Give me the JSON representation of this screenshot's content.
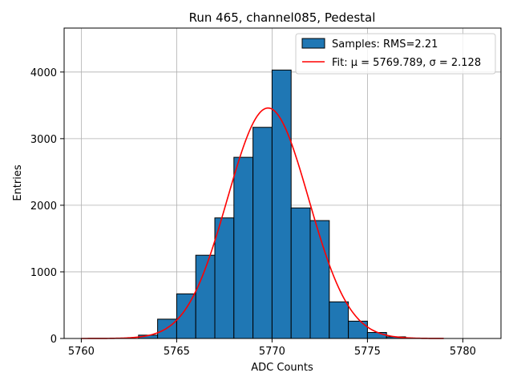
{
  "chart_data": {
    "type": "bar",
    "title": "Run 465, channel085, Pedestal",
    "xlabel": "ADC Counts",
    "ylabel": "Entries",
    "xlim": [
      5759.1,
      5782.0
    ],
    "ylim": [
      0,
      4660
    ],
    "xticks": [
      5760,
      5765,
      5770,
      5775,
      5780
    ],
    "yticks": [
      0,
      1000,
      2000,
      3000,
      4000
    ],
    "grid": true,
    "legend_position": "top-right",
    "bin_width": 1,
    "bins": [
      {
        "left": 5763,
        "count": 50
      },
      {
        "left": 5764,
        "count": 290
      },
      {
        "left": 5765,
        "count": 670
      },
      {
        "left": 5766,
        "count": 1250
      },
      {
        "left": 5767,
        "count": 1810
      },
      {
        "left": 5768,
        "count": 2720
      },
      {
        "left": 5769,
        "count": 3170
      },
      {
        "left": 5770,
        "count": 4030
      },
      {
        "left": 5771,
        "count": 1960
      },
      {
        "left": 5772,
        "count": 1770
      },
      {
        "left": 5773,
        "count": 550
      },
      {
        "left": 5774,
        "count": 260
      },
      {
        "left": 5775,
        "count": 90
      },
      {
        "left": 5776,
        "count": 25
      }
    ],
    "fit": {
      "mu": 5769.789,
      "sigma": 2.128,
      "amplitude": 3460,
      "x_range": [
        5760,
        5779
      ]
    },
    "series": [
      {
        "name": "Samples: RMS=2.21",
        "kind": "histogram",
        "color": "#1f77b4"
      },
      {
        "name": "Fit: μ = 5769.789, σ = 2.128",
        "kind": "line",
        "color": "#ff0000"
      }
    ]
  }
}
